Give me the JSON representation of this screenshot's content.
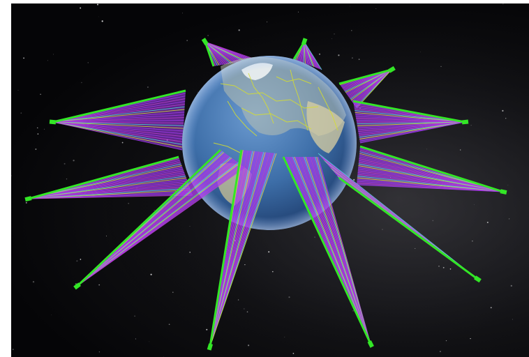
{
  "scene": {
    "subject": "",
    "star_count": 140,
    "colors": {
      "background": "#050507",
      "ocean": "#3d6ea8",
      "ocean_dark": "#1c3a69",
      "land": "#c9c7a8",
      "borders": "#d8e02a",
      "green": "#33e626",
      "purple": "#a23cf0",
      "magenta": "#c03fd0",
      "cyan": "#4de8e0",
      "yellow": "#d8ea30"
    }
  }
}
